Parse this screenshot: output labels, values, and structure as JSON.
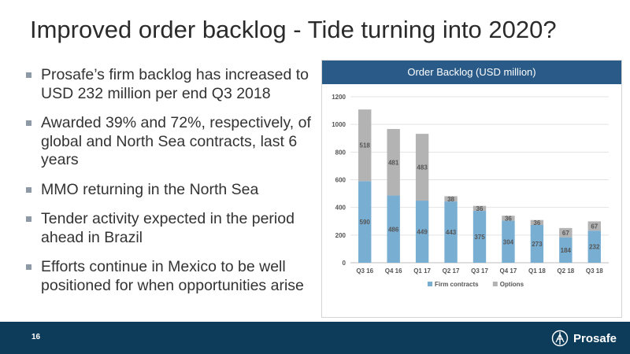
{
  "slide": {
    "title": "Improved order backlog - Tide turning into 2020?",
    "bullets": [
      "Prosafe’s firm backlog has increased to USD 232 million per end Q3 2018",
      "Awarded 39% and 72%, respectively, of global and North Sea contracts, last 6 years",
      "MMO returning in the North Sea",
      "Tender activity expected in the period ahead in Brazil",
      "Efforts continue in Mexico to be well positioned for when opportunities arise"
    ],
    "page_number": "16",
    "logo_text": "Prosafe"
  },
  "colors": {
    "header_bg": "#2a5b88",
    "footer_bg": "#0d3c5b",
    "firm": "#79aed3",
    "options": "#b3b3b3"
  },
  "chart_data": {
    "type": "bar",
    "stacked": true,
    "title": "Order Backlog (USD million)",
    "categories": [
      "Q3 16",
      "Q4 16",
      "Q1 17",
      "Q2 17",
      "Q3 17",
      "Q4 17",
      "Q1 18",
      "Q2 18",
      "Q3 18"
    ],
    "series": [
      {
        "name": "Firm contracts",
        "values": [
          590,
          486,
          449,
          443,
          375,
          304,
          273,
          184,
          232
        ],
        "color": "#79aed3"
      },
      {
        "name": "Options",
        "values": [
          518,
          481,
          483,
          38,
          36,
          36,
          36,
          67,
          67
        ],
        "color": "#b3b3b3"
      }
    ],
    "ylim": [
      0,
      1200
    ],
    "yticks": [
      "0",
      "200",
      "400",
      "600",
      "800",
      "1000",
      "1200"
    ],
    "grid": true,
    "legend": "bottom"
  }
}
